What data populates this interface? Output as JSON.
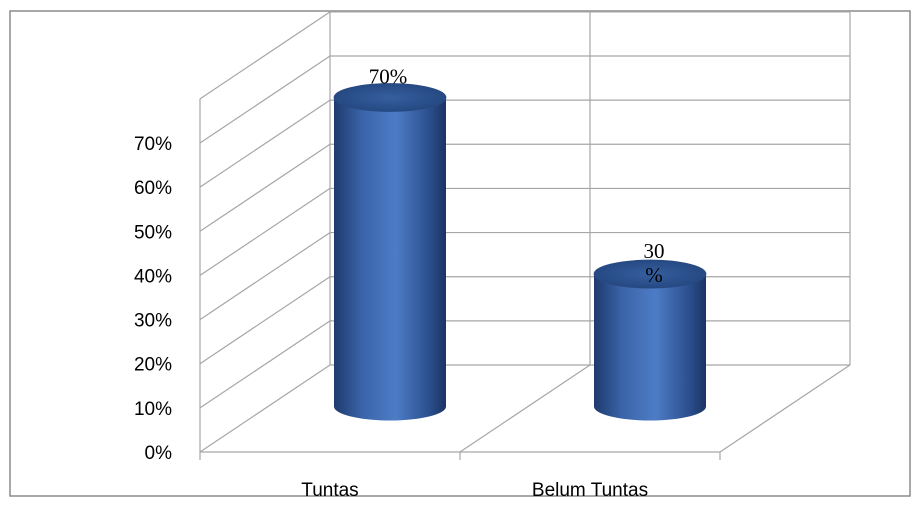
{
  "chart_data": {
    "type": "bar",
    "style": "3d-cylinder",
    "categories": [
      "Tuntas",
      "Belum Tuntas"
    ],
    "values": [
      70,
      30
    ],
    "data_labels": [
      [
        "70%"
      ],
      [
        "30",
        "%"
      ]
    ],
    "ylim": [
      0,
      70
    ],
    "yticks": [
      "0%",
      "10%",
      "20%",
      "30%",
      "40%",
      "50%",
      "60%",
      "70%"
    ],
    "grid": true,
    "legend": "none",
    "colors": {
      "bar": "#4472c4",
      "bar_dark": "#1f3864",
      "grid": "#a6a6a6",
      "frame": "#bfbfbf"
    }
  }
}
